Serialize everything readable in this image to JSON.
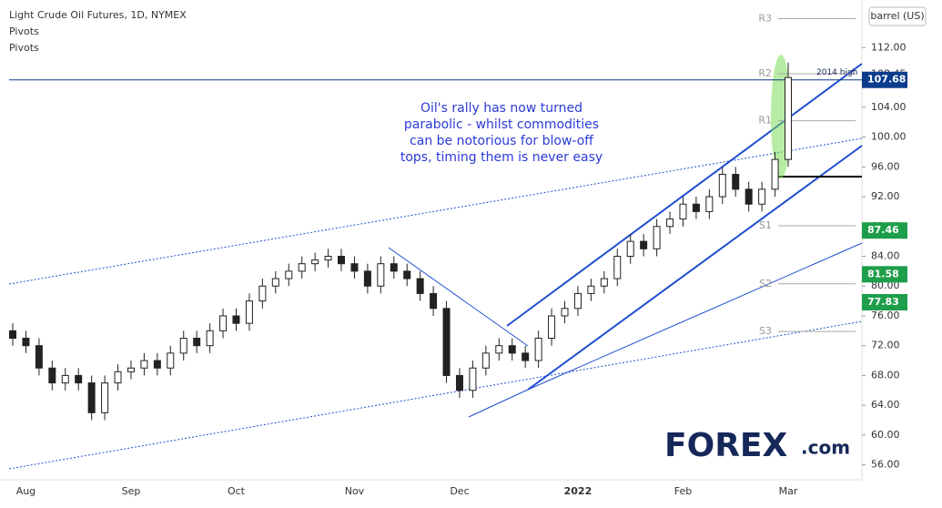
{
  "chart_data": {
    "type": "candlestick",
    "title": "Light Crude Oil Futures, 1D, NYMEX",
    "indicators": [
      "Pivots",
      "Pivots"
    ],
    "unit": "barrel (US)",
    "categories": [
      null,
      "Aug",
      null,
      null,
      null,
      null,
      null,
      null,
      null,
      "Sep",
      null,
      null,
      null,
      null,
      null,
      null,
      null,
      "Oct",
      null,
      null,
      null,
      null,
      null,
      null,
      null,
      null,
      "Nov",
      null,
      null,
      null,
      null,
      null,
      null,
      null,
      "Dec",
      null,
      null,
      null,
      null,
      null,
      null,
      null,
      null,
      "2022",
      null,
      null,
      null,
      null,
      null,
      null,
      null,
      "Feb",
      null,
      null,
      null,
      null,
      null,
      null,
      null,
      "Mar"
    ],
    "open": [
      74,
      73,
      72,
      69,
      67,
      68,
      67,
      63,
      67,
      68.5,
      69,
      70,
      69,
      71,
      73,
      72,
      74,
      76,
      75,
      78,
      80,
      81,
      82,
      83,
      83.5,
      84,
      83,
      82,
      80,
      83,
      82,
      81,
      79,
      77,
      68,
      66,
      69,
      71,
      72,
      71,
      70,
      73,
      76,
      77,
      79,
      80,
      81,
      84,
      86,
      85,
      88,
      89,
      91,
      90,
      92,
      95,
      93,
      91,
      93,
      97
    ],
    "high": [
      75,
      74,
      73,
      70,
      69,
      69,
      68,
      68,
      69.5,
      70,
      71,
      71,
      72,
      74,
      74,
      75,
      77,
      77,
      79,
      81,
      82,
      83,
      84,
      84.5,
      85,
      85,
      84,
      83,
      84,
      84,
      83,
      82,
      80,
      78,
      69,
      70,
      72,
      73,
      73,
      72,
      74,
      77,
      78,
      80,
      81,
      82,
      85,
      87,
      87,
      89,
      90,
      92,
      92,
      93,
      96,
      96,
      94,
      94,
      98,
      110
    ],
    "low": [
      72,
      71,
      68,
      66,
      66,
      66,
      62,
      62,
      66,
      67.5,
      68,
      68,
      68,
      70,
      71,
      71,
      73,
      74,
      74,
      77,
      79,
      80,
      81,
      82,
      82.5,
      82,
      81,
      79,
      79,
      81,
      80,
      78,
      76,
      67,
      65,
      65,
      68,
      70,
      70,
      69,
      69,
      72,
      75,
      76,
      78,
      79,
      80,
      83,
      84,
      84,
      87,
      88,
      89,
      89,
      91,
      92,
      90,
      90,
      92,
      96
    ],
    "close": [
      73,
      72,
      69,
      67,
      68,
      67,
      63,
      67,
      68.5,
      69,
      70,
      69,
      71,
      73,
      72,
      74,
      76,
      75,
      78,
      80,
      81,
      82,
      83,
      83.5,
      84,
      83,
      82,
      80,
      83,
      82,
      81,
      79,
      77,
      68,
      66,
      69,
      71,
      72,
      71,
      70,
      73,
      76,
      77,
      79,
      80,
      81,
      84,
      86,
      85,
      88,
      89,
      91,
      90,
      92,
      95,
      93,
      91,
      93,
      97,
      108
    ],
    "ylim": [
      54,
      118.4
    ],
    "yticks": [
      {
        "value": 56,
        "label": "56.00"
      },
      {
        "value": 60,
        "label": "60.00"
      },
      {
        "value": 64,
        "label": "64.00"
      },
      {
        "value": 68,
        "label": "68.00"
      },
      {
        "value": 72,
        "label": "72.00"
      },
      {
        "value": 76,
        "label": "76.00"
      },
      {
        "value": 80,
        "label": "80.00"
      },
      {
        "value": 84,
        "label": "84.00"
      },
      {
        "value": 88,
        "label": "88.00"
      },
      {
        "value": 92,
        "label": "92.00"
      },
      {
        "value": 96,
        "label": "96.00"
      },
      {
        "value": 100,
        "label": "100.00"
      },
      {
        "value": 104,
        "label": "104.00"
      },
      {
        "value": 108,
        "label": "108.00"
      },
      {
        "value": 112,
        "label": "112.00"
      }
    ],
    "pivots": [
      {
        "label": "R3",
        "value": 115.9
      },
      {
        "label": "R2",
        "value": 108.5
      },
      {
        "label": "R1",
        "value": 102.2
      },
      {
        "label": "S1",
        "value": 88.1
      },
      {
        "label": "S2",
        "value": 80.3
      },
      {
        "label": "S3",
        "value": 73.9
      }
    ],
    "plain_price": 108.45,
    "last_price": {
      "value": 107.68,
      "color": "#0c3c8c"
    },
    "price_badges": [
      {
        "value": 87.46,
        "color": "#1e9e4a"
      },
      {
        "value": 81.58,
        "color": "#1e9e4a"
      },
      {
        "value": 77.83,
        "color": "#1e9e4a"
      }
    ],
    "high_label": "2014 high",
    "annotation": [
      "Oil's rally has now turned",
      "parabolic - whilst commodities",
      "can be notorious for blow-off",
      "tops, timing them is never easy"
    ],
    "logo_main": "FOREX",
    "logo_suffix": ".com"
  }
}
